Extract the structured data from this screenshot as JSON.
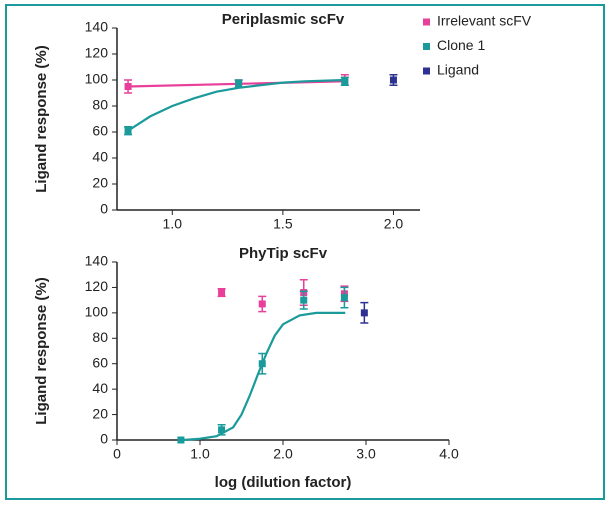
{
  "chart_data": [
    {
      "type": "scatter",
      "title": "Periplasmic scFv",
      "y_label": "Ligand response (%)",
      "xlim": [
        0.75,
        2.12
      ],
      "xticks": [
        {
          "value": 1,
          "label": "1.0"
        },
        1.5,
        {
          "value": 2,
          "label": "2.0"
        }
      ],
      "ylim": [
        0,
        140
      ],
      "yticks": [
        0,
        20,
        40,
        60,
        80,
        100,
        120,
        140
      ],
      "legend": "upper right",
      "series": [
        {
          "name": "Irrelevant scFV",
          "color": "#e8409a",
          "x": [
            0.8,
            1.3,
            1.78
          ],
          "values": [
            95,
            97,
            100
          ],
          "errors": [
            5,
            3,
            4
          ],
          "fit": {
            "x": [
              0.8,
              1.78
            ],
            "y": [
              95,
              99
            ]
          }
        },
        {
          "name": "Clone 1",
          "color": "#1a9a9a",
          "x": [
            0.8,
            1.3,
            1.78
          ],
          "values": [
            61,
            97,
            99
          ],
          "errors": [
            3,
            3,
            3
          ],
          "fit": {
            "x": [
              0.8,
              0.9,
              1.0,
              1.1,
              1.2,
              1.3,
              1.4,
              1.5,
              1.6,
              1.78
            ],
            "y": [
              61,
              72,
              80,
              86,
              91,
              94,
              96,
              98,
              99,
              100
            ]
          }
        },
        {
          "name": "Ligand",
          "color": "#2e3192",
          "x": [
            2.0
          ],
          "values": [
            100
          ],
          "errors": [
            4
          ]
        }
      ]
    },
    {
      "type": "scatter",
      "title": "PhyTip scFv",
      "y_label": "Ligand response (%)",
      "x_label": "log (dilution factor)",
      "xlim": [
        0,
        4
      ],
      "xticks": [
        0,
        {
          "value": 1,
          "label": "1.0"
        },
        {
          "value": 2,
          "label": "2.0"
        },
        {
          "value": 3,
          "label": "3.0"
        },
        {
          "value": 4,
          "label": "4.0"
        }
      ],
      "ylim": [
        0,
        140
      ],
      "yticks": [
        0,
        20,
        40,
        60,
        80,
        100,
        120,
        140
      ],
      "series": [
        {
          "color": "#e8409a",
          "x": [
            1.26,
            1.75,
            2.25,
            2.74
          ],
          "values": [
            116,
            107,
            116,
            115
          ],
          "errors": [
            3,
            6,
            10,
            6
          ]
        },
        {
          "color": "#1a9a9a",
          "x": [
            0.77,
            1.26,
            1.75,
            2.25,
            2.74
          ],
          "values": [
            0,
            8,
            60,
            110,
            112
          ],
          "errors": [
            0,
            4,
            8,
            7,
            8
          ],
          "fit": {
            "x": [
              0.8,
              1.0,
              1.2,
              1.4,
              1.5,
              1.6,
              1.7,
              1.8,
              1.9,
              2.0,
              2.2,
              2.4,
              2.75
            ],
            "y": [
              0,
              1,
              3,
              10,
              20,
              35,
              52,
              68,
              82,
              91,
              98,
              100,
              100
            ]
          }
        },
        {
          "color": "#2e3192",
          "x": [
            2.98
          ],
          "values": [
            100
          ],
          "errors": [
            8
          ]
        }
      ]
    }
  ]
}
